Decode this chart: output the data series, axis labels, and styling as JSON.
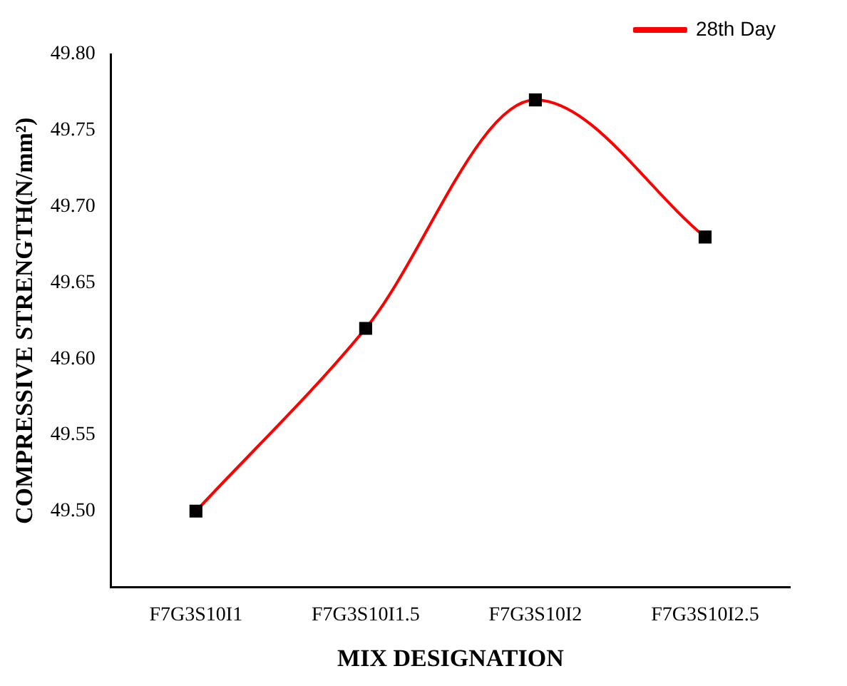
{
  "chart_data": {
    "type": "line",
    "xlabel": "MIX DESIGNATION",
    "ylabel": "COMPRESSIVE STRENGTH(N/mm²)",
    "categories": [
      "F7G3S10I1",
      "F7G3S10I1.5",
      "F7G3S10I2",
      "F7G3S10I2.5"
    ],
    "series": [
      {
        "name": "28th Day",
        "color": "#ff0000",
        "values": [
          49.5,
          49.62,
          49.77,
          49.68
        ]
      }
    ],
    "ylim": [
      49.45,
      49.8
    ],
    "yticks": [
      {
        "value": 49.5,
        "label": "49.50"
      },
      {
        "value": 49.55,
        "label": "49.55"
      },
      {
        "value": 49.6,
        "label": "49.60"
      },
      {
        "value": 49.65,
        "label": "49.65"
      },
      {
        "value": 49.7,
        "label": "49.70"
      },
      {
        "value": 49.75,
        "label": "49.75"
      },
      {
        "value": 49.8,
        "label": "49.80"
      }
    ],
    "grid": false,
    "legend": "top right",
    "marker": "square",
    "line_style": "solid"
  }
}
